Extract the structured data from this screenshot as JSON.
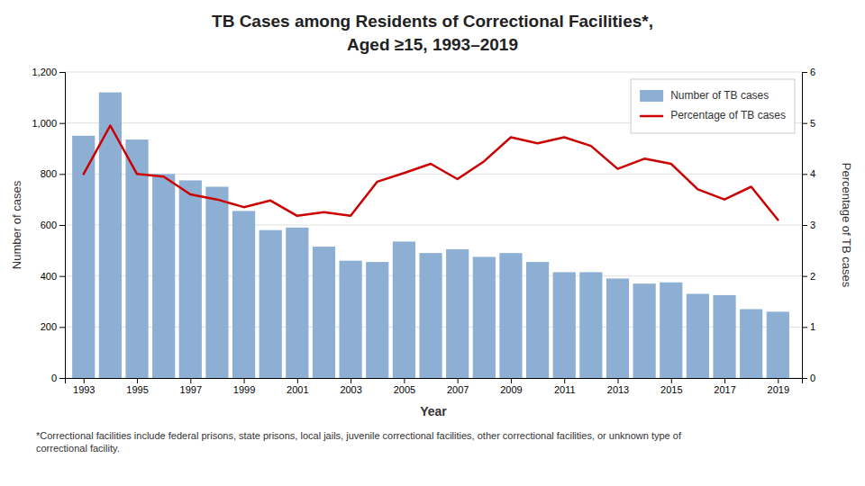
{
  "chart_data": {
    "type": "bar",
    "title": "TB Cases among Residents of Correctional Facilities*,",
    "subtitle": "Aged ≥15, 1993–2019",
    "xlabel": "Year",
    "ylabel": "Number of cases",
    "y2label": "Percentage of TB cases",
    "x": [
      1993,
      1994,
      1995,
      1996,
      1997,
      1998,
      1999,
      2000,
      2001,
      2002,
      2003,
      2004,
      2005,
      2006,
      2007,
      2008,
      2009,
      2010,
      2011,
      2012,
      2013,
      2014,
      2015,
      2016,
      2017,
      2018,
      2019
    ],
    "series": [
      {
        "name": "Number of TB cases",
        "type": "bar",
        "color": "#8dafd4",
        "values": [
          950,
          1120,
          935,
          800,
          775,
          750,
          655,
          580,
          590,
          515,
          460,
          455,
          535,
          490,
          505,
          475,
          490,
          455,
          415,
          415,
          390,
          370,
          375,
          330,
          325,
          270,
          260
        ]
      },
      {
        "name": "Percentage of TB cases",
        "type": "line",
        "color": "#cc0000",
        "axis": "y2",
        "values": [
          4.0,
          4.95,
          4.0,
          3.95,
          3.6,
          3.5,
          3.35,
          3.48,
          3.18,
          3.25,
          3.18,
          3.85,
          4.02,
          4.2,
          3.9,
          4.25,
          4.72,
          4.6,
          4.72,
          4.55,
          4.1,
          4.3,
          4.2,
          3.7,
          3.5,
          3.75,
          3.1
        ]
      }
    ],
    "xlim": [
      1992.3,
      2019.9
    ],
    "xticks": [
      1993,
      1995,
      1997,
      1999,
      2001,
      2003,
      2005,
      2007,
      2009,
      2011,
      2013,
      2015,
      2017,
      2019
    ],
    "ylim": [
      0,
      1200
    ],
    "yticks": [
      0,
      200,
      400,
      600,
      800,
      {
        "value": 1000,
        "label": "1,000"
      },
      {
        "value": 1200,
        "label": "1,200"
      }
    ],
    "y2lim": [
      0,
      6
    ],
    "y2ticks": [
      0,
      1,
      2,
      3,
      4,
      5,
      6
    ],
    "grid": true,
    "legend": "upper right",
    "annotations": [
      "*Correctional facilities include federal prisons, state prisons, local jails, juvenile correctional facilities, other correctional facilities, or unknown type of\ncorrectional facility."
    ]
  }
}
